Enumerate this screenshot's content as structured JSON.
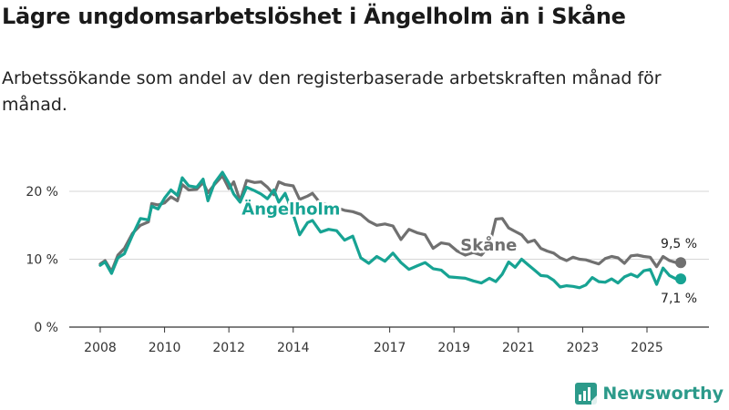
{
  "title": "Lägre ungdomsarbetslöshet i Ängelholm än i Skåne",
  "subtitle": "Arbetssökande som andel av den registerbaserade arbetskraften månad för månad.",
  "brand": {
    "name": "Newsworthy",
    "color": "#2c9a8a"
  },
  "chart_data": {
    "type": "line",
    "ylim": [
      0,
      20
    ],
    "yticks": [
      0,
      10,
      20
    ],
    "ytick_labels": [
      "0 %",
      "10 %",
      "20 %"
    ],
    "xlim": [
      2008,
      2026.6
    ],
    "xticks": [
      2008,
      2010,
      2012,
      2014,
      2017,
      2019,
      2021,
      2023,
      2025
    ],
    "xtick_labels": [
      "2008",
      "2010",
      "2012",
      "2014",
      "2017",
      "2019",
      "2021",
      "2023",
      "2025"
    ],
    "series": [
      {
        "name": "Skåne",
        "color": "#707070",
        "end_label": "9,5 %",
        "points": [
          [
            2008.0,
            9.3
          ],
          [
            2008.15,
            9.8
          ],
          [
            2008.35,
            8.2
          ],
          [
            2008.55,
            10.6
          ],
          [
            2008.75,
            11.6
          ],
          [
            2009.0,
            13.8
          ],
          [
            2009.25,
            15.0
          ],
          [
            2009.5,
            15.5
          ],
          [
            2009.6,
            18.2
          ],
          [
            2009.8,
            18.0
          ],
          [
            2010.0,
            18.3
          ],
          [
            2010.2,
            19.2
          ],
          [
            2010.4,
            18.6
          ],
          [
            2010.55,
            21.0
          ],
          [
            2010.75,
            20.2
          ],
          [
            2011.0,
            20.3
          ],
          [
            2011.2,
            21.3
          ],
          [
            2011.35,
            19.8
          ],
          [
            2011.55,
            21.0
          ],
          [
            2011.8,
            22.3
          ],
          [
            2012.0,
            20.4
          ],
          [
            2012.15,
            21.4
          ],
          [
            2012.35,
            18.6
          ],
          [
            2012.55,
            21.6
          ],
          [
            2012.8,
            21.3
          ],
          [
            2013.0,
            21.4
          ],
          [
            2013.2,
            20.6
          ],
          [
            2013.4,
            19.5
          ],
          [
            2013.55,
            21.4
          ],
          [
            2013.75,
            21.0
          ],
          [
            2014.0,
            20.8
          ],
          [
            2014.2,
            18.8
          ],
          [
            2014.45,
            19.3
          ],
          [
            2014.6,
            19.7
          ],
          [
            2014.85,
            18.2
          ],
          [
            2015.1,
            18.0
          ],
          [
            2015.35,
            17.6
          ],
          [
            2015.6,
            17.2
          ],
          [
            2015.85,
            17.0
          ],
          [
            2016.1,
            16.6
          ],
          [
            2016.35,
            15.6
          ],
          [
            2016.6,
            15.0
          ],
          [
            2016.85,
            15.2
          ],
          [
            2017.1,
            14.9
          ],
          [
            2017.35,
            12.9
          ],
          [
            2017.6,
            14.4
          ],
          [
            2017.85,
            13.9
          ],
          [
            2018.1,
            13.6
          ],
          [
            2018.35,
            11.6
          ],
          [
            2018.6,
            12.4
          ],
          [
            2018.85,
            12.2
          ],
          [
            2019.1,
            11.2
          ],
          [
            2019.35,
            10.6
          ],
          [
            2019.6,
            11.0
          ],
          [
            2019.85,
            10.6
          ],
          [
            2020.1,
            12.0
          ],
          [
            2020.3,
            15.9
          ],
          [
            2020.5,
            16.0
          ],
          [
            2020.7,
            14.6
          ],
          [
            2020.9,
            14.1
          ],
          [
            2021.1,
            13.6
          ],
          [
            2021.3,
            12.5
          ],
          [
            2021.5,
            12.8
          ],
          [
            2021.7,
            11.6
          ],
          [
            2021.9,
            11.2
          ],
          [
            2022.1,
            10.9
          ],
          [
            2022.3,
            10.2
          ],
          [
            2022.5,
            9.8
          ],
          [
            2022.7,
            10.3
          ],
          [
            2022.9,
            10.0
          ],
          [
            2023.1,
            9.9
          ],
          [
            2023.3,
            9.6
          ],
          [
            2023.5,
            9.3
          ],
          [
            2023.7,
            10.1
          ],
          [
            2023.9,
            10.4
          ],
          [
            2024.1,
            10.2
          ],
          [
            2024.3,
            9.4
          ],
          [
            2024.5,
            10.5
          ],
          [
            2024.7,
            10.6
          ],
          [
            2024.9,
            10.4
          ],
          [
            2025.1,
            10.3
          ],
          [
            2025.3,
            8.9
          ],
          [
            2025.5,
            10.4
          ],
          [
            2025.7,
            9.8
          ],
          [
            2025.9,
            9.5
          ],
          [
            2026.05,
            9.5
          ]
        ]
      },
      {
        "name": "Ängelholm",
        "color": "#17a393",
        "end_label": "7,1 %",
        "points": [
          [
            2008.0,
            9.1
          ],
          [
            2008.15,
            9.6
          ],
          [
            2008.35,
            7.9
          ],
          [
            2008.55,
            10.2
          ],
          [
            2008.75,
            10.8
          ],
          [
            2009.0,
            13.5
          ],
          [
            2009.25,
            16.0
          ],
          [
            2009.5,
            15.8
          ],
          [
            2009.6,
            17.8
          ],
          [
            2009.8,
            17.4
          ],
          [
            2010.0,
            19.0
          ],
          [
            2010.2,
            20.2
          ],
          [
            2010.4,
            19.4
          ],
          [
            2010.55,
            22.0
          ],
          [
            2010.75,
            20.8
          ],
          [
            2011.0,
            20.6
          ],
          [
            2011.2,
            21.8
          ],
          [
            2011.35,
            18.6
          ],
          [
            2011.55,
            21.2
          ],
          [
            2011.8,
            22.8
          ],
          [
            2012.0,
            21.2
          ],
          [
            2012.15,
            19.6
          ],
          [
            2012.35,
            18.4
          ],
          [
            2012.55,
            20.6
          ],
          [
            2012.8,
            20.1
          ],
          [
            2013.0,
            19.6
          ],
          [
            2013.2,
            18.9
          ],
          [
            2013.4,
            20.2
          ],
          [
            2013.55,
            18.4
          ],
          [
            2013.75,
            19.7
          ],
          [
            2014.0,
            16.6
          ],
          [
            2014.2,
            13.6
          ],
          [
            2014.45,
            15.4
          ],
          [
            2014.6,
            15.7
          ],
          [
            2014.85,
            14.0
          ],
          [
            2015.1,
            14.4
          ],
          [
            2015.35,
            14.2
          ],
          [
            2015.6,
            12.8
          ],
          [
            2015.85,
            13.4
          ],
          [
            2016.1,
            10.2
          ],
          [
            2016.35,
            9.4
          ],
          [
            2016.6,
            10.4
          ],
          [
            2016.85,
            9.7
          ],
          [
            2017.1,
            10.9
          ],
          [
            2017.35,
            9.5
          ],
          [
            2017.6,
            8.5
          ],
          [
            2017.85,
            9.0
          ],
          [
            2018.1,
            9.5
          ],
          [
            2018.35,
            8.6
          ],
          [
            2018.6,
            8.4
          ],
          [
            2018.85,
            7.4
          ],
          [
            2019.1,
            7.3
          ],
          [
            2019.35,
            7.2
          ],
          [
            2019.6,
            6.8
          ],
          [
            2019.85,
            6.5
          ],
          [
            2020.1,
            7.2
          ],
          [
            2020.3,
            6.7
          ],
          [
            2020.5,
            7.8
          ],
          [
            2020.7,
            9.6
          ],
          [
            2020.9,
            8.8
          ],
          [
            2021.1,
            10.0
          ],
          [
            2021.3,
            9.2
          ],
          [
            2021.5,
            8.4
          ],
          [
            2021.7,
            7.6
          ],
          [
            2021.9,
            7.5
          ],
          [
            2022.1,
            6.9
          ],
          [
            2022.3,
            5.9
          ],
          [
            2022.5,
            6.1
          ],
          [
            2022.7,
            6.0
          ],
          [
            2022.9,
            5.8
          ],
          [
            2023.1,
            6.2
          ],
          [
            2023.3,
            7.3
          ],
          [
            2023.5,
            6.7
          ],
          [
            2023.7,
            6.6
          ],
          [
            2023.9,
            7.1
          ],
          [
            2024.1,
            6.5
          ],
          [
            2024.3,
            7.4
          ],
          [
            2024.5,
            7.8
          ],
          [
            2024.7,
            7.4
          ],
          [
            2024.9,
            8.3
          ],
          [
            2025.1,
            8.5
          ],
          [
            2025.3,
            6.3
          ],
          [
            2025.5,
            8.7
          ],
          [
            2025.7,
            7.6
          ],
          [
            2025.9,
            7.1
          ],
          [
            2026.05,
            7.1
          ]
        ]
      }
    ]
  }
}
